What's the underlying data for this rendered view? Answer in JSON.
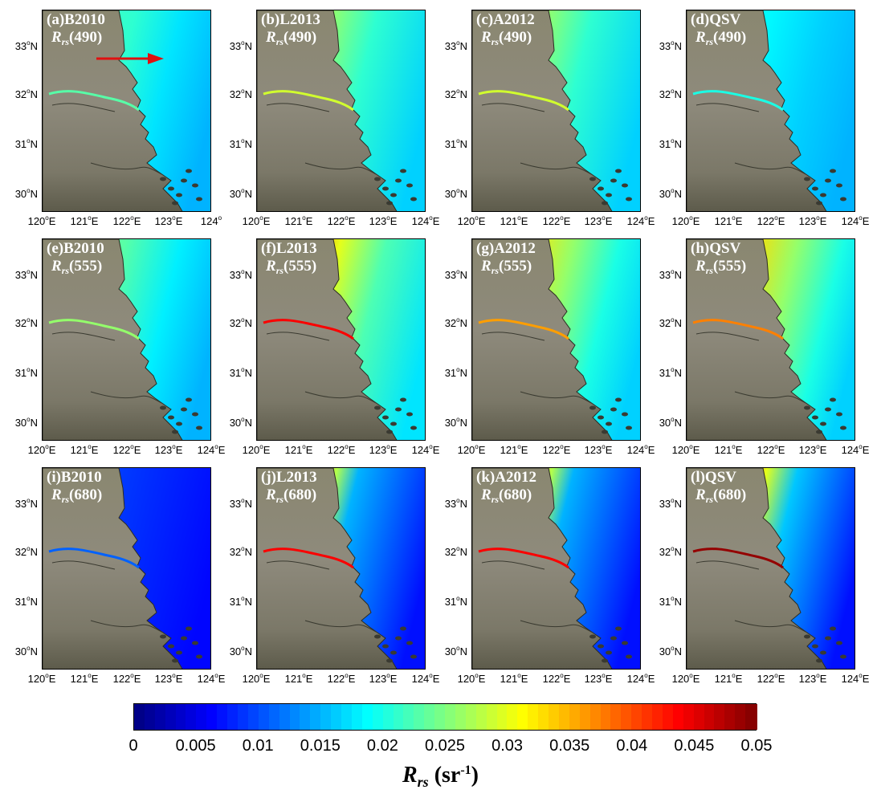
{
  "panels": [
    {
      "id": "a",
      "title": "(a)B2010",
      "band": "(490)",
      "scheme": "p490a"
    },
    {
      "id": "b",
      "title": "(b)L2013",
      "band": "(490)",
      "scheme": "p490"
    },
    {
      "id": "c",
      "title": "(c)A2012",
      "band": "(490)",
      "scheme": "p490"
    },
    {
      "id": "d",
      "title": "(d)QSV",
      "band": "(490)",
      "scheme": "p490d"
    },
    {
      "id": "e",
      "title": "(e)B2010",
      "band": "(555)",
      "scheme": "p555a"
    },
    {
      "id": "f",
      "title": "(f)L2013",
      "band": "(555)",
      "scheme": "p555"
    },
    {
      "id": "g",
      "title": "(g)A2012",
      "band": "(555)",
      "scheme": "p555g"
    },
    {
      "id": "h",
      "title": "(h)QSV",
      "band": "(555)",
      "scheme": "p555h"
    },
    {
      "id": "i",
      "title": "(i)B2010",
      "band": "(680)",
      "scheme": "p680a"
    },
    {
      "id": "j",
      "title": "(j)L2013",
      "band": "(680)",
      "scheme": "p680"
    },
    {
      "id": "k",
      "title": "(k)A2012",
      "band": "(680)",
      "scheme": "p680"
    },
    {
      "id": "l",
      "title": "(l)QSV",
      "band": "(680)",
      "scheme": "p680l"
    }
  ],
  "symbol": {
    "main": "R",
    "sub": "rs"
  },
  "lat_labels": [
    "33",
    "32",
    "31",
    "30"
  ],
  "lat_suffix": "N",
  "lon_labels_row1": [
    "120",
    "121",
    "122",
    "123",
    "124"
  ],
  "lon_suffix_row1": [
    "E",
    "E",
    "E",
    "E",
    ""
  ],
  "lon_suffix_other": [
    "E",
    "E",
    "E",
    "E",
    "E"
  ],
  "colorbar": {
    "ticks": [
      "0",
      "0.005",
      "0.01",
      "0.015",
      "0.02",
      "0.025",
      "0.03",
      "0.035",
      "0.04",
      "0.045",
      "0.05"
    ],
    "label_main": "R",
    "label_sub": "rs",
    "label_unit_open": " (sr",
    "label_unit_sup": "-1",
    "label_unit_close": ")",
    "colormap": "jet",
    "range": [
      0,
      0.05
    ]
  },
  "annotation": {
    "arrow_color": "#e01010"
  }
}
